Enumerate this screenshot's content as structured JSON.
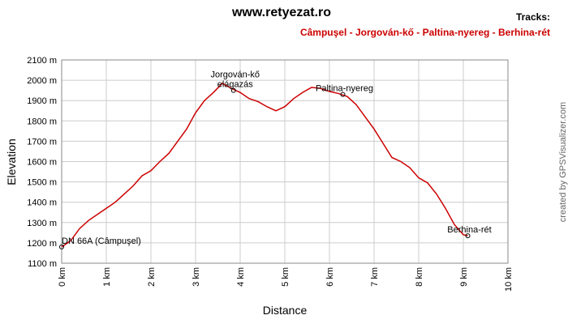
{
  "chart_data": {
    "type": "line",
    "title": "www.retyezat.ro",
    "legend_title": "Tracks:",
    "x_label": "Distance",
    "y_label": "Elevation",
    "credit": "created by GPSVisualizer.com",
    "grid": true,
    "xlim": [
      0,
      10
    ],
    "xticks": [
      {
        "value": 0,
        "label": "0 km"
      },
      {
        "value": 1,
        "label": "1 km"
      },
      {
        "value": 2,
        "label": "2 km"
      },
      {
        "value": 3,
        "label": "3 km"
      },
      {
        "value": 4,
        "label": "4 km"
      },
      {
        "value": 5,
        "label": "5 km"
      },
      {
        "value": 6,
        "label": "6 km"
      },
      {
        "value": 7,
        "label": "7 km"
      },
      {
        "value": 8,
        "label": "8 km"
      },
      {
        "value": 9,
        "label": "9 km"
      },
      {
        "value": 10,
        "label": "10 km"
      }
    ],
    "ylim": [
      1100,
      2100
    ],
    "yticks": [
      {
        "value": 1100,
        "label": "1100 m"
      },
      {
        "value": 1200,
        "label": "1200 m"
      },
      {
        "value": 1300,
        "label": "1300 m"
      },
      {
        "value": 1400,
        "label": "1400 m"
      },
      {
        "value": 1500,
        "label": "1500 m"
      },
      {
        "value": 1600,
        "label": "1600 m"
      },
      {
        "value": 1700,
        "label": "1700 m"
      },
      {
        "value": 1800,
        "label": "1800 m"
      },
      {
        "value": 1900,
        "label": "1900 m"
      },
      {
        "value": 2000,
        "label": "2000 m"
      },
      {
        "value": 2100,
        "label": "2100 m"
      }
    ],
    "series": [
      {
        "name": "Câmpuşel - Jorgován-kő - Paltina-nyereg - Berhina-rét",
        "color": "#cc0000",
        "x": [
          0,
          0.2,
          0.4,
          0.6,
          0.8,
          1.0,
          1.2,
          1.4,
          1.6,
          1.8,
          2.0,
          2.2,
          2.4,
          2.6,
          2.8,
          3.0,
          3.2,
          3.4,
          3.6,
          3.8,
          4.0,
          4.2,
          4.4,
          4.6,
          4.8,
          5.0,
          5.2,
          5.4,
          5.6,
          5.8,
          6.0,
          6.2,
          6.4,
          6.6,
          6.8,
          7.0,
          7.2,
          7.4,
          7.6,
          7.8,
          8.0,
          8.2,
          8.4,
          8.6,
          8.8,
          9.0,
          9.1
        ],
        "values": [
          1180,
          1210,
          1270,
          1310,
          1340,
          1370,
          1400,
          1440,
          1480,
          1530,
          1555,
          1600,
          1640,
          1700,
          1760,
          1840,
          1900,
          1940,
          1985,
          1960,
          1940,
          1910,
          1895,
          1870,
          1850,
          1870,
          1910,
          1940,
          1965,
          1960,
          1945,
          1935,
          1920,
          1880,
          1820,
          1760,
          1690,
          1620,
          1600,
          1570,
          1520,
          1495,
          1440,
          1370,
          1290,
          1240,
          1235
        ]
      }
    ],
    "waypoints": [
      {
        "label": [
          "DN 66A (Câmpuşel)"
        ],
        "x": 0,
        "y": 1180
      },
      {
        "label": [
          "Jorgován-kő",
          "elágazás"
        ],
        "x": 3.85,
        "y": 1950
      },
      {
        "label": [
          "Paltina-nyereg"
        ],
        "x": 6.3,
        "y": 1930
      },
      {
        "label": [
          "Berhina-rét"
        ],
        "x": 9.1,
        "y": 1235
      }
    ]
  }
}
